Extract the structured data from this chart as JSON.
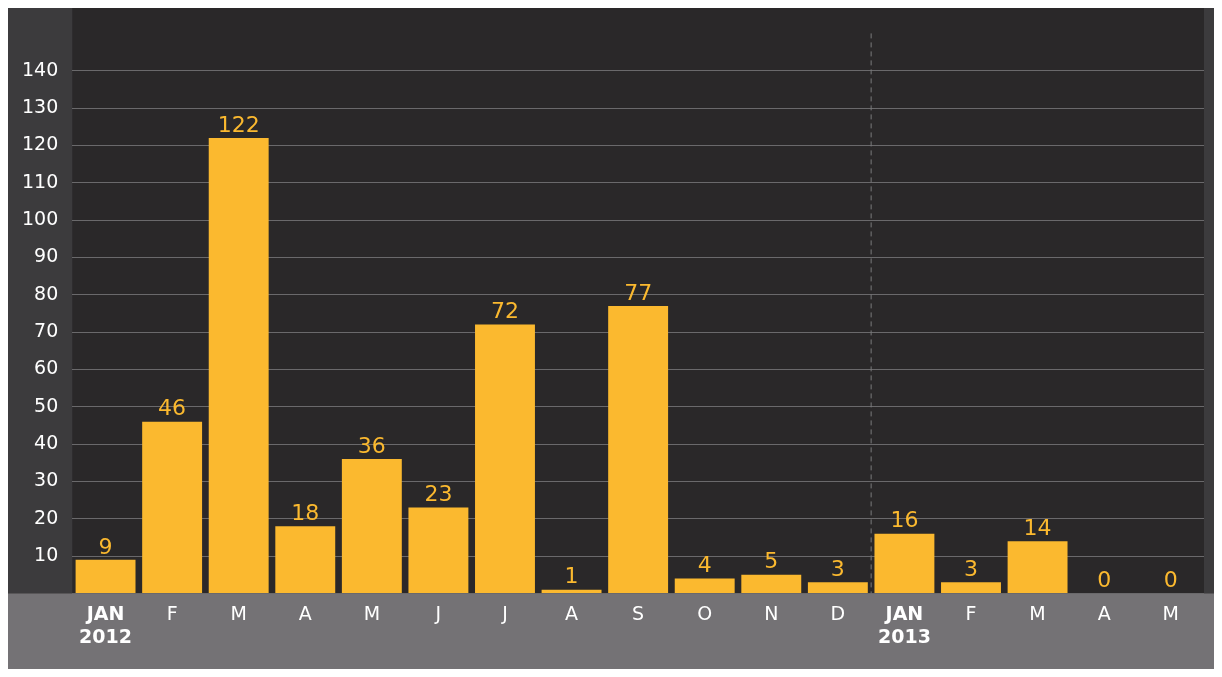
{
  "chart_data": {
    "type": "bar",
    "categories": [
      "JAN\n2012",
      "F",
      "M",
      "A",
      "M",
      "J",
      "J",
      "A",
      "S",
      "O",
      "N",
      "D",
      "JAN\n2013",
      "F",
      "M",
      "A",
      "M"
    ],
    "values": [
      9,
      46,
      122,
      18,
      36,
      23,
      72,
      1,
      77,
      4,
      5,
      3,
      16,
      3,
      14,
      0,
      0
    ],
    "color": "#fbb92f",
    "data_labels": true,
    "ylim": [
      0,
      150
    ],
    "yticks": [
      {
        "value": 0,
        "label": null
      },
      10,
      20,
      30,
      40,
      50,
      60,
      70,
      80,
      90,
      100,
      110,
      120,
      130,
      140
    ],
    "grid": "y",
    "ref_lines": [
      {
        "axis": "x",
        "value": "JAN\n2013",
        "label": null,
        "color": "#7a797b",
        "line_style": "dashed"
      }
    ]
  }
}
